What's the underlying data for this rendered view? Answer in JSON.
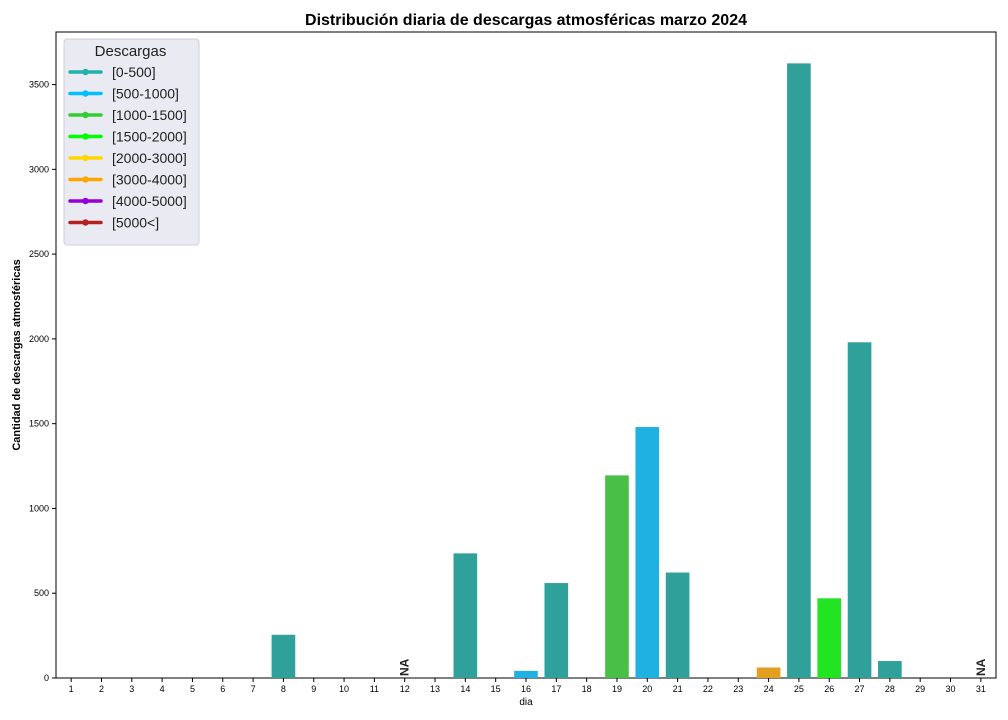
{
  "chart_data": {
    "type": "bar",
    "title": "Distribución diaria de descargas atmosféricas marzo 2024",
    "xlabel": "dia",
    "ylabel": "Cantidad de descargas atmosféricas",
    "categories": [
      "1",
      "2",
      "3",
      "4",
      "5",
      "6",
      "7",
      "8",
      "9",
      "10",
      "11",
      "12",
      "13",
      "14",
      "15",
      "16",
      "17",
      "18",
      "19",
      "20",
      "21",
      "22",
      "23",
      "24",
      "25",
      "26",
      "27",
      "28",
      "29",
      "30",
      "31"
    ],
    "values": [
      0,
      0,
      0,
      0,
      0,
      0,
      0,
      255,
      0,
      0,
      0,
      null,
      0,
      735,
      0,
      42,
      560,
      0,
      1195,
      1480,
      622,
      0,
      0,
      62,
      3625,
      470,
      1980,
      100,
      0,
      0,
      null
    ],
    "bar_colors": [
      "#30a19a",
      "#30a19a",
      "#30a19a",
      "#30a19a",
      "#30a19a",
      "#30a19a",
      "#30a19a",
      "#30a19a",
      "#30a19a",
      "#30a19a",
      "#30a19a",
      "#30a19a",
      "#30a19a",
      "#30a19a",
      "#30a19a",
      "#1eb1e1",
      "#30a19a",
      "#30a19a",
      "#4abf48",
      "#1eb1e1",
      "#30a19a",
      "#30a19a",
      "#30a19a",
      "#e29f20",
      "#30a19a",
      "#22e422",
      "#30a19a",
      "#30a19a",
      "#30a19a",
      "#30a19a",
      "#30a19a"
    ],
    "missing_label": "NA",
    "yticks": [
      0,
      500,
      1000,
      1500,
      2000,
      2500,
      3000,
      3500
    ],
    "ylim": [
      0,
      3810
    ],
    "grid": false,
    "legend": {
      "title": "Descargas",
      "placement": "top-left",
      "entries": [
        {
          "label": "[0-500]",
          "color": "#20b2aa"
        },
        {
          "label": "[500-1000]",
          "color": "#00bfff"
        },
        {
          "label": "[1000-1500]",
          "color": "#32cd32"
        },
        {
          "label": "[1500-2000]",
          "color": "#00ff00"
        },
        {
          "label": "[2000-3000]",
          "color": "#ffd700"
        },
        {
          "label": "[3000-4000]",
          "color": "#ffa500"
        },
        {
          "label": "[4000-5000]",
          "color": "#9400d3"
        },
        {
          "label": "[5000<]",
          "color": "#b22222"
        }
      ]
    }
  }
}
